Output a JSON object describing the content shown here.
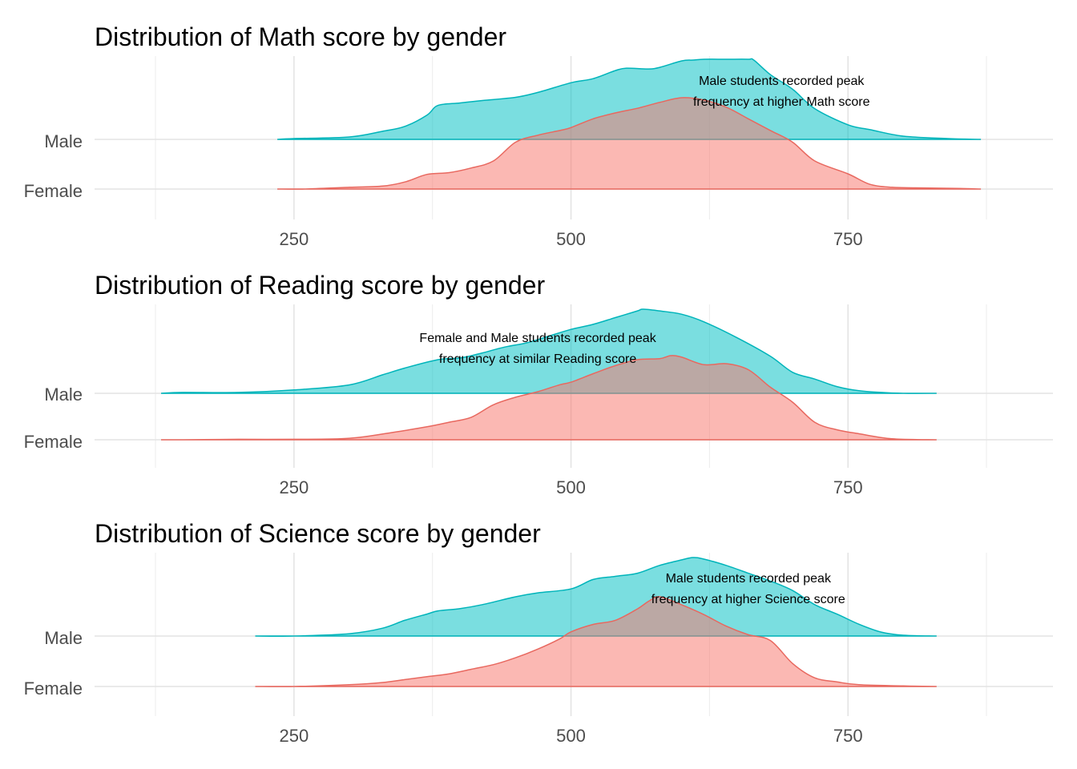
{
  "chart_data": [
    {
      "type": "density_ridges",
      "title": "Distribution of Math score by gender",
      "categories": [
        "Female",
        "Male"
      ],
      "x_ticks": [
        250,
        500,
        750
      ],
      "xlim": [
        70,
        935
      ],
      "grid": true,
      "annotation": {
        "lines": [
          "Male students recorded peak",
          "frequency at higher Math score"
        ],
        "x": 690
      },
      "series": [
        {
          "name": "Male",
          "color": "#00BFC4",
          "x": [
            235,
            250,
            300,
            330,
            350,
            370,
            380,
            400,
            420,
            450,
            470,
            500,
            520,
            540,
            550,
            570,
            580,
            600,
            610,
            620,
            640,
            660,
            665,
            680,
            700,
            720,
            750,
            770,
            800,
            840,
            870
          ],
          "density": [
            0.0,
            0.01,
            0.03,
            0.1,
            0.16,
            0.3,
            0.42,
            0.45,
            0.48,
            0.52,
            0.58,
            0.7,
            0.75,
            0.85,
            0.88,
            0.87,
            0.89,
            0.97,
            0.98,
            0.99,
            0.99,
            0.99,
            0.98,
            0.8,
            0.62,
            0.38,
            0.18,
            0.12,
            0.04,
            0.01,
            0.0
          ]
        },
        {
          "name": "Female",
          "color": "#F8766D",
          "x": [
            235,
            260,
            300,
            330,
            350,
            370,
            390,
            410,
            430,
            450,
            470,
            490,
            500,
            520,
            540,
            560,
            580,
            600,
            620,
            640,
            660,
            680,
            700,
            720,
            750,
            770,
            790,
            810,
            850,
            870
          ],
          "density": [
            0.0,
            0.0,
            0.03,
            0.05,
            0.12,
            0.25,
            0.28,
            0.36,
            0.48,
            0.8,
            0.92,
            1.0,
            1.05,
            1.2,
            1.3,
            1.38,
            1.48,
            1.56,
            1.52,
            1.4,
            1.2,
            1.0,
            0.8,
            0.48,
            0.26,
            0.08,
            0.03,
            0.02,
            0.01,
            0.0
          ]
        }
      ]
    },
    {
      "type": "density_ridges",
      "title": "Distribution of Reading score by gender",
      "categories": [
        "Female",
        "Male"
      ],
      "x_ticks": [
        250,
        500,
        750
      ],
      "xlim": [
        70,
        935
      ],
      "grid": true,
      "annotation": {
        "lines": [
          "Female and Male students recorded peak",
          "frequency at similar Reading score"
        ],
        "x": 470
      },
      "series": [
        {
          "name": "Male",
          "color": "#00BFC4",
          "x": [
            130,
            150,
            200,
            250,
            300,
            330,
            350,
            380,
            400,
            420,
            440,
            460,
            480,
            500,
            520,
            540,
            560,
            565,
            580,
            600,
            620,
            650,
            680,
            700,
            720,
            740,
            760,
            780,
            800,
            830
          ],
          "density": [
            0.0,
            0.01,
            0.01,
            0.04,
            0.1,
            0.22,
            0.3,
            0.4,
            0.42,
            0.48,
            0.55,
            0.6,
            0.68,
            0.76,
            0.82,
            0.9,
            0.98,
            1.0,
            0.98,
            0.94,
            0.85,
            0.66,
            0.44,
            0.25,
            0.17,
            0.08,
            0.03,
            0.01,
            0.0,
            0.0
          ]
        },
        {
          "name": "Female",
          "color": "#F8766D",
          "x": [
            130,
            150,
            200,
            250,
            300,
            340,
            370,
            390,
            410,
            430,
            450,
            470,
            490,
            500,
            520,
            540,
            560,
            580,
            590,
            600,
            620,
            640,
            660,
            680,
            700,
            720,
            740,
            760,
            790,
            830
          ],
          "density": [
            0.0,
            0.0,
            0.01,
            0.01,
            0.03,
            0.15,
            0.26,
            0.35,
            0.45,
            0.7,
            0.85,
            0.96,
            1.1,
            1.15,
            1.32,
            1.48,
            1.6,
            1.62,
            1.68,
            1.65,
            1.5,
            1.52,
            1.4,
            1.05,
            0.75,
            0.35,
            0.2,
            0.12,
            0.02,
            0.0
          ]
        }
      ]
    },
    {
      "type": "density_ridges",
      "title": "Distribution of Science score by gender",
      "categories": [
        "Female",
        "Male"
      ],
      "x_ticks": [
        250,
        500,
        750
      ],
      "xlim": [
        70,
        935
      ],
      "grid": true,
      "annotation": {
        "lines": [
          "Male students recorded peak",
          "frequency at higher Science score"
        ],
        "x": 660
      },
      "series": [
        {
          "name": "Male",
          "color": "#00BFC4",
          "x": [
            215,
            250,
            300,
            330,
            350,
            370,
            380,
            400,
            420,
            450,
            470,
            500,
            520,
            540,
            560,
            580,
            600,
            610,
            620,
            640,
            660,
            680,
            700,
            720,
            740,
            760,
            780,
            800,
            830
          ],
          "density": [
            0.0,
            0.0,
            0.03,
            0.1,
            0.2,
            0.28,
            0.32,
            0.35,
            0.4,
            0.5,
            0.55,
            0.6,
            0.72,
            0.76,
            0.8,
            0.9,
            0.97,
            1.0,
            0.98,
            0.9,
            0.8,
            0.7,
            0.58,
            0.4,
            0.28,
            0.15,
            0.05,
            0.01,
            0.0
          ]
        },
        {
          "name": "Female",
          "color": "#F8766D",
          "x": [
            215,
            250,
            300,
            330,
            350,
            370,
            390,
            410,
            430,
            450,
            470,
            490,
            500,
            520,
            540,
            560,
            570,
            580,
            600,
            620,
            640,
            660,
            680,
            700,
            720,
            740,
            760,
            800,
            830
          ],
          "density": [
            0.0,
            0.0,
            0.03,
            0.07,
            0.12,
            0.17,
            0.22,
            0.3,
            0.38,
            0.5,
            0.65,
            0.83,
            0.95,
            1.08,
            1.15,
            1.35,
            1.48,
            1.56,
            1.42,
            1.25,
            1.05,
            0.9,
            0.8,
            0.4,
            0.15,
            0.08,
            0.03,
            0.01,
            0.0
          ]
        }
      ]
    }
  ]
}
